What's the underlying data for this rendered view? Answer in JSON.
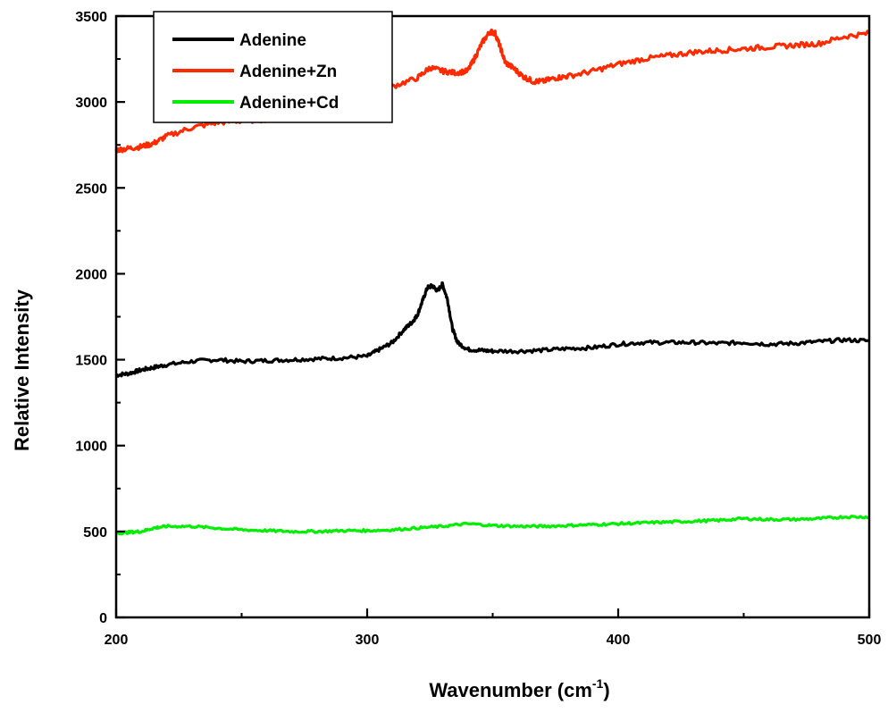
{
  "chart_data": {
    "type": "line",
    "title": "",
    "xlabel": "Wavenumber (cm",
    "xlabel_sup": "-1",
    "xlabel_suffix": ")",
    "ylabel": "Relative Intensity",
    "xlim": [
      200,
      500
    ],
    "ylim": [
      0,
      3500
    ],
    "xticks": [
      200,
      300,
      400,
      500
    ],
    "yticks": [
      0,
      500,
      1000,
      1500,
      2000,
      2500,
      3000,
      3500
    ],
    "grid": false,
    "legend_position": "top-left",
    "series": [
      {
        "name": "Adenine",
        "color": "#000000",
        "x": [
          200,
          205,
          210,
          215,
          220,
          230,
          240,
          250,
          260,
          270,
          280,
          290,
          300,
          305,
          310,
          315,
          318,
          320,
          322,
          324,
          326,
          328,
          330,
          332,
          334,
          336,
          340,
          345,
          350,
          360,
          370,
          380,
          390,
          400,
          410,
          420,
          430,
          440,
          450,
          460,
          470,
          480,
          490,
          500
        ],
        "y": [
          1410,
          1420,
          1440,
          1455,
          1470,
          1490,
          1500,
          1490,
          1495,
          1500,
          1505,
          1510,
          1520,
          1560,
          1600,
          1680,
          1720,
          1760,
          1840,
          1920,
          1930,
          1900,
          1940,
          1850,
          1680,
          1600,
          1560,
          1555,
          1550,
          1550,
          1555,
          1565,
          1570,
          1590,
          1600,
          1600,
          1600,
          1595,
          1600,
          1590,
          1595,
          1605,
          1615,
          1610
        ]
      },
      {
        "name": "Adenine+Zn",
        "color": "#ff2a00",
        "x": [
          200,
          205,
          210,
          215,
          220,
          230,
          240,
          250,
          260,
          270,
          280,
          290,
          300,
          310,
          320,
          325,
          330,
          335,
          340,
          343,
          346,
          349,
          351,
          353,
          355,
          358,
          362,
          366,
          370,
          375,
          380,
          390,
          400,
          410,
          420,
          430,
          440,
          450,
          460,
          470,
          480,
          490,
          500
        ],
        "y": [
          2720,
          2730,
          2740,
          2760,
          2800,
          2850,
          2880,
          2890,
          2900,
          2920,
          2980,
          3040,
          3060,
          3090,
          3140,
          3200,
          3180,
          3170,
          3180,
          3260,
          3350,
          3410,
          3400,
          3320,
          3230,
          3200,
          3150,
          3120,
          3120,
          3140,
          3150,
          3180,
          3220,
          3250,
          3270,
          3290,
          3300,
          3310,
          3320,
          3330,
          3340,
          3380,
          3400
        ]
      },
      {
        "name": "Adenine+Cd",
        "color": "#00ee00",
        "x": [
          200,
          205,
          210,
          215,
          220,
          230,
          240,
          250,
          260,
          270,
          280,
          290,
          300,
          310,
          320,
          330,
          340,
          350,
          360,
          370,
          380,
          390,
          400,
          410,
          420,
          430,
          440,
          450,
          460,
          470,
          480,
          490,
          500
        ],
        "y": [
          490,
          495,
          500,
          520,
          530,
          530,
          520,
          510,
          505,
          500,
          500,
          505,
          505,
          510,
          520,
          530,
          545,
          535,
          530,
          530,
          535,
          540,
          545,
          550,
          555,
          560,
          565,
          575,
          570,
          570,
          575,
          585,
          585
        ]
      }
    ]
  }
}
